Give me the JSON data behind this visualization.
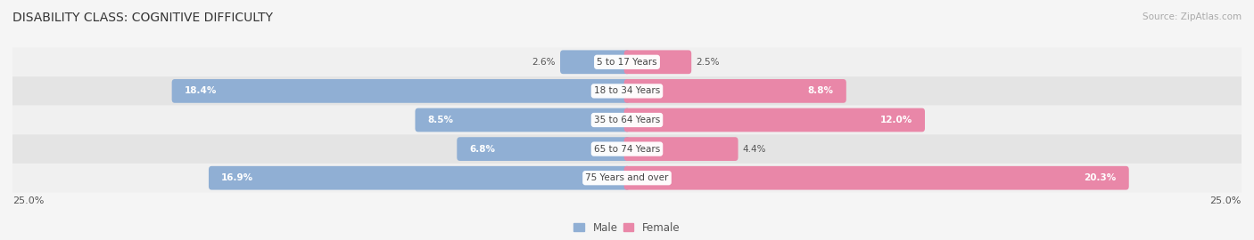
{
  "title": "DISABILITY CLASS: COGNITIVE DIFFICULTY",
  "source": "Source: ZipAtlas.com",
  "categories": [
    "5 to 17 Years",
    "18 to 34 Years",
    "35 to 64 Years",
    "65 to 74 Years",
    "75 Years and over"
  ],
  "male_values": [
    2.6,
    18.4,
    8.5,
    6.8,
    16.9
  ],
  "female_values": [
    2.5,
    8.8,
    12.0,
    4.4,
    20.3
  ],
  "max_value": 25.0,
  "male_color": "#90afd4",
  "female_color": "#e987a8",
  "male_label": "Male",
  "female_label": "Female",
  "row_bg_light": "#f0f0f0",
  "row_bg_dark": "#e4e4e4",
  "title_fontsize": 10,
  "value_fontsize": 7.5,
  "cat_fontsize": 7.5,
  "axis_label_fontsize": 8,
  "legend_fontsize": 8.5
}
